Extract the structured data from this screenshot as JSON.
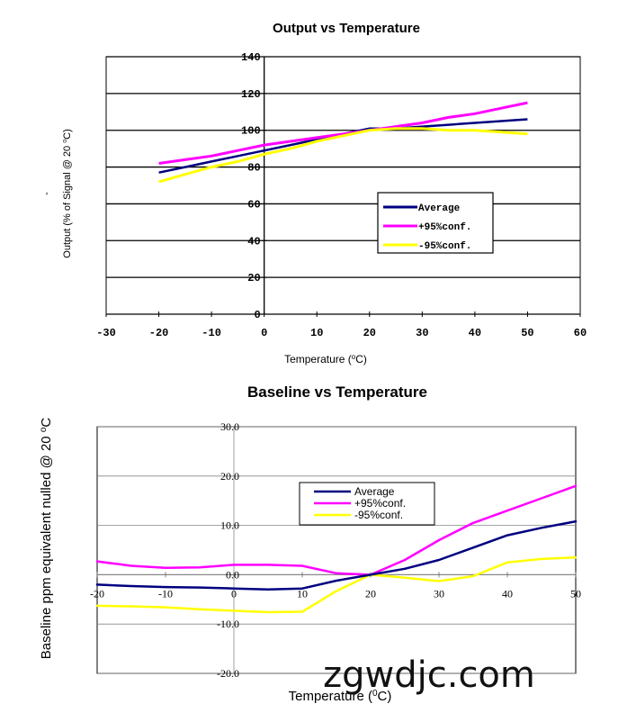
{
  "watermark": "zgwdjc.com",
  "chart_data": [
    {
      "type": "line",
      "title": "Output vs Temperature",
      "xlabel": "Temperature (°C)",
      "ylabel_prefix": "Output (% of Signal @ 20 ",
      "ylabel_sup": "o",
      "ylabel_suffix": "C)",
      "ylabel_side_mark": "-",
      "xlabel_prefix": "Temperature (",
      "xlabel_sup": "o",
      "xlabel_suffix": "C)",
      "xlim": [
        -30,
        60
      ],
      "ylim": [
        0,
        140
      ],
      "xticks": [
        "-30",
        "-20",
        "-10",
        "0",
        "10",
        "20",
        "30",
        "40",
        "50",
        "60"
      ],
      "yticks": [
        "0",
        "20",
        "40",
        "60",
        "80",
        "100",
        "120",
        "140"
      ],
      "grid": "horizontal",
      "legend_position": "center-right",
      "series": [
        {
          "name": "Average",
          "color": "#000080",
          "x": [
            -20,
            -15,
            -10,
            -5,
            0,
            5,
            10,
            15,
            20,
            25,
            30,
            35,
            40,
            45,
            50
          ],
          "y": [
            77,
            80,
            83,
            86,
            89,
            92,
            95,
            98,
            101,
            101,
            102,
            103,
            104,
            105,
            106
          ]
        },
        {
          "name": "+95%conf.",
          "color": "#ff00ff",
          "x": [
            -20,
            -15,
            -10,
            -5,
            0,
            5,
            10,
            15,
            20,
            25,
            30,
            35,
            40,
            45,
            50
          ],
          "y": [
            82,
            84,
            86,
            89,
            92,
            94,
            96,
            98,
            100,
            102,
            104,
            107,
            109,
            112,
            115
          ]
        },
        {
          "name": "-95%conf.",
          "color": "#ffff00",
          "x": [
            -20,
            -15,
            -10,
            -5,
            0,
            5,
            10,
            15,
            20,
            25,
            30,
            35,
            40,
            45,
            50
          ],
          "y": [
            72,
            76,
            80,
            83,
            87,
            90,
            94,
            97,
            100,
            101,
            101,
            100,
            100,
            99,
            98
          ]
        }
      ]
    },
    {
      "type": "line",
      "title": "Baseline vs Temperature",
      "ylabel": "Baseline ppm equivalent nulled @ 20 °C",
      "ylabel_prefix": "Baseline ppm equivalent nulled @ 20 ",
      "ylabel_sup": "o",
      "ylabel_suffix": "C",
      "xlabel_prefix": "Temperature (",
      "xlabel_sup": "0",
      "xlabel_suffix": "C)",
      "xlim": [
        -20,
        50
      ],
      "ylim": [
        -20,
        30
      ],
      "xticks": [
        "-20",
        "-10",
        "0",
        "10",
        "20",
        "30",
        "40",
        "50"
      ],
      "yticks": [
        "-20.0",
        "-10.0",
        "0.0",
        "10.0",
        "20.0",
        "30.0"
      ],
      "grid": "both",
      "legend_position": "top-center",
      "series": [
        {
          "name": "Average",
          "color": "#000080",
          "x": [
            -20,
            -15,
            -10,
            -5,
            0,
            5,
            10,
            15,
            20,
            25,
            30,
            35,
            40,
            45,
            50
          ],
          "y": [
            -2.0,
            -2.3,
            -2.5,
            -2.6,
            -2.8,
            -3.0,
            -2.8,
            -1.2,
            0.0,
            1.2,
            3.0,
            5.5,
            8.0,
            9.5,
            10.8
          ]
        },
        {
          "name": "+95%conf.",
          "color": "#ff00ff",
          "x": [
            -20,
            -15,
            -10,
            -5,
            0,
            5,
            10,
            15,
            20,
            25,
            30,
            35,
            40,
            45,
            50
          ],
          "y": [
            2.7,
            1.8,
            1.4,
            1.5,
            2.0,
            2.0,
            1.8,
            0.3,
            0.0,
            3.0,
            7.0,
            10.5,
            13.0,
            15.5,
            18.0
          ]
        },
        {
          "name": "-95%conf.",
          "color": "#ffff00",
          "x": [
            -20,
            -15,
            -10,
            -5,
            0,
            5,
            10,
            15,
            20,
            25,
            30,
            35,
            40,
            45,
            50
          ],
          "y": [
            -6.3,
            -6.4,
            -6.6,
            -7.0,
            -7.3,
            -7.6,
            -7.5,
            -3.3,
            0.0,
            -0.6,
            -1.3,
            -0.3,
            2.5,
            3.2,
            3.5
          ]
        }
      ]
    }
  ]
}
